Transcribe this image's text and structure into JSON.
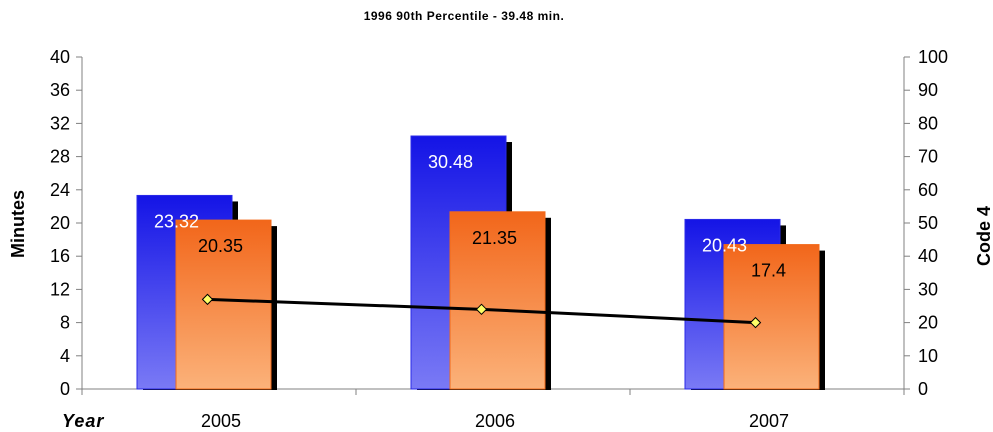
{
  "chart_data": {
    "type": "bar",
    "title": "1996 90th Percentile - 39.48 min.",
    "xlabel": "Year",
    "ylabel": "Minutes",
    "y2label": "Code 4",
    "categories": [
      "2005",
      "2006",
      "2007"
    ],
    "ylim": [
      0,
      40
    ],
    "y2lim": [
      0,
      100
    ],
    "yticks": [
      "0",
      "4",
      "8",
      "12",
      "16",
      "20",
      "24",
      "28",
      "32",
      "36",
      "40"
    ],
    "y2ticks": [
      "0",
      "10",
      "20",
      "30",
      "40",
      "50",
      "60",
      "70",
      "80",
      "90",
      "100"
    ],
    "series": [
      {
        "values": [
          23.32,
          30.48,
          20.43
        ],
        "labels": [
          "23.32",
          "30.48",
          "20.43"
        ],
        "color": "#2a2ae8",
        "axis": "left",
        "kind": "bar"
      },
      {
        "values": [
          20.35,
          21.35,
          17.4
        ],
        "labels": [
          "20.35",
          "21.35",
          "17.4"
        ],
        "color": "#f26a1a",
        "axis": "left",
        "kind": "bar"
      },
      {
        "values": [
          27,
          24,
          20
        ],
        "color": "#000000",
        "marker_color": "#ffff66",
        "axis": "right",
        "kind": "line"
      }
    ],
    "legend": "none",
    "grid": false
  }
}
